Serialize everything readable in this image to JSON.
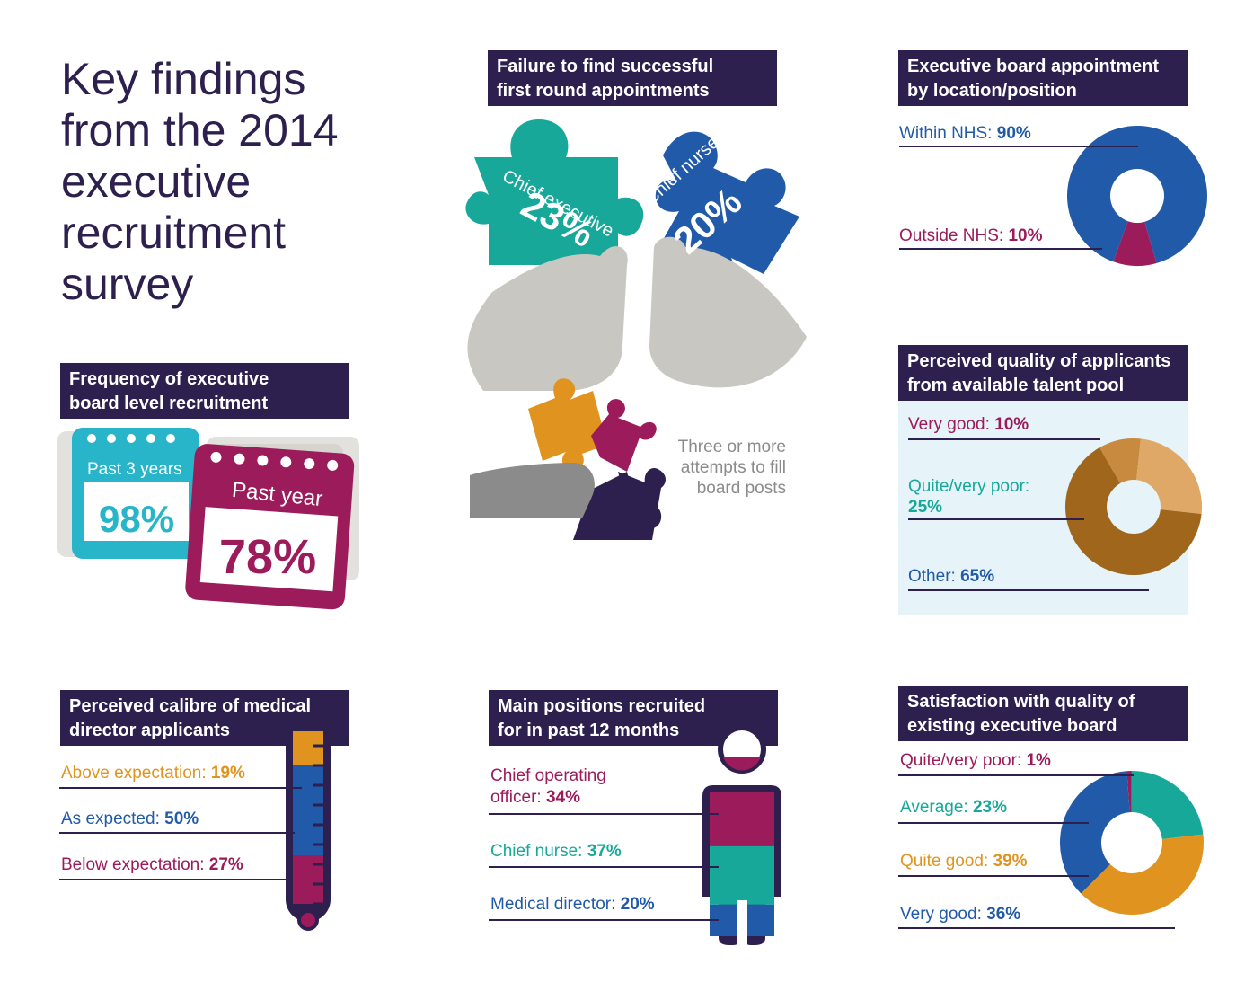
{
  "title_lines": [
    "Key findings",
    "from the 2014",
    "executive",
    "recruitment",
    "survey"
  ],
  "colors": {
    "navy": "#2d1f4e",
    "teal": "#17a89a",
    "blue": "#215aa8",
    "maroon": "#9c1b5b",
    "orange": "#e0941f",
    "grey": "#c8c7c2",
    "light_blue_bg": "#e6f3f8",
    "brown1": "#a0661b",
    "brown2": "#c78a3e",
    "brown3": "#e0a866"
  },
  "frequency": {
    "header": [
      "Frequency of executive",
      "board level recruitment"
    ],
    "past3_label": "Past 3 years",
    "past3_value": "98%",
    "past1_label": "Past year",
    "past1_value": "78%"
  },
  "failure": {
    "header": [
      "Failure to find successful",
      "first round appointments"
    ],
    "ce_label": "Chief executive",
    "ce_value": "23%",
    "cn_label": "Chief nurse",
    "cn_value": "20%",
    "three_attempts": [
      "Three or more",
      "attempts to fill",
      "board posts"
    ]
  },
  "location": {
    "header": [
      "Executive board appointment",
      "by location/position"
    ],
    "within_label": "Within NHS:",
    "within_value": "90%",
    "outside_label": "Outside NHS:",
    "outside_value": "10%"
  },
  "quality_pool": {
    "header": [
      "Perceived quality of applicants",
      "from available talent pool"
    ],
    "vg_label": "Very good:",
    "vg_value": "10%",
    "poor_label": "Quite/very poor:",
    "poor_value": "25%",
    "other_label": "Other:",
    "other_value": "65%"
  },
  "calibre": {
    "header": [
      "Perceived calibre of medical",
      "director applicants"
    ],
    "above_label": "Above expectation:",
    "above_value": "19%",
    "as_label": "As expected:",
    "as_value": "50%",
    "below_label": "Below expectation:",
    "below_value": "27%"
  },
  "positions": {
    "header": [
      "Main positions recruited",
      "for in past 12 months"
    ],
    "coo_label": [
      "Chief operating",
      "officer:"
    ],
    "coo_value": "34%",
    "cn_label": "Chief nurse:",
    "cn_value": "37%",
    "md_label": "Medical director:",
    "md_value": "20%"
  },
  "satisfaction": {
    "header": [
      "Satisfaction with quality of",
      "existing executive board"
    ],
    "poor_label": "Quite/very poor:",
    "poor_value": "1%",
    "avg_label": "Average:",
    "avg_value": "23%",
    "qg_label": "Quite good:",
    "qg_value": "39%",
    "vg_label": "Very good:",
    "vg_value": "36%"
  },
  "chart_data": [
    {
      "type": "pie",
      "title": "Executive board appointment by location/position",
      "categories": [
        "Within NHS",
        "Outside NHS"
      ],
      "values": [
        90,
        10
      ],
      "colors": [
        "#215aa8",
        "#9c1b5b"
      ]
    },
    {
      "type": "pie",
      "title": "Perceived quality of applicants from available talent pool",
      "categories": [
        "Very good",
        "Quite/very poor",
        "Other"
      ],
      "values": [
        10,
        25,
        65
      ],
      "colors": [
        "#c78a3e",
        "#e0a866",
        "#a0661b"
      ]
    },
    {
      "type": "pie",
      "title": "Satisfaction with quality of existing executive board",
      "categories": [
        "Quite/very poor",
        "Average",
        "Quite good",
        "Very good"
      ],
      "values": [
        1,
        23,
        39,
        36
      ],
      "colors": [
        "#9c1b5b",
        "#17a89a",
        "#e0941f",
        "#215aa8"
      ]
    },
    {
      "type": "bar",
      "title": "Perceived calibre of medical director applicants",
      "categories": [
        "Above expectation",
        "As expected",
        "Below expectation"
      ],
      "values": [
        19,
        50,
        27
      ],
      "colors": [
        "#e0941f",
        "#215aa8",
        "#9c1b5b"
      ]
    },
    {
      "type": "bar",
      "title": "Main positions recruited for in past 12 months",
      "categories": [
        "Chief operating officer",
        "Chief nurse",
        "Medical director"
      ],
      "values": [
        34,
        37,
        20
      ],
      "colors": [
        "#9c1b5b",
        "#17a89a",
        "#215aa8"
      ]
    },
    {
      "type": "bar",
      "title": "Frequency of executive board level recruitment",
      "categories": [
        "Past 3 years",
        "Past year"
      ],
      "values": [
        98,
        78
      ]
    },
    {
      "type": "bar",
      "title": "Failure to find successful first round appointments",
      "categories": [
        "Chief executive",
        "Chief nurse"
      ],
      "values": [
        23,
        20
      ]
    }
  ]
}
